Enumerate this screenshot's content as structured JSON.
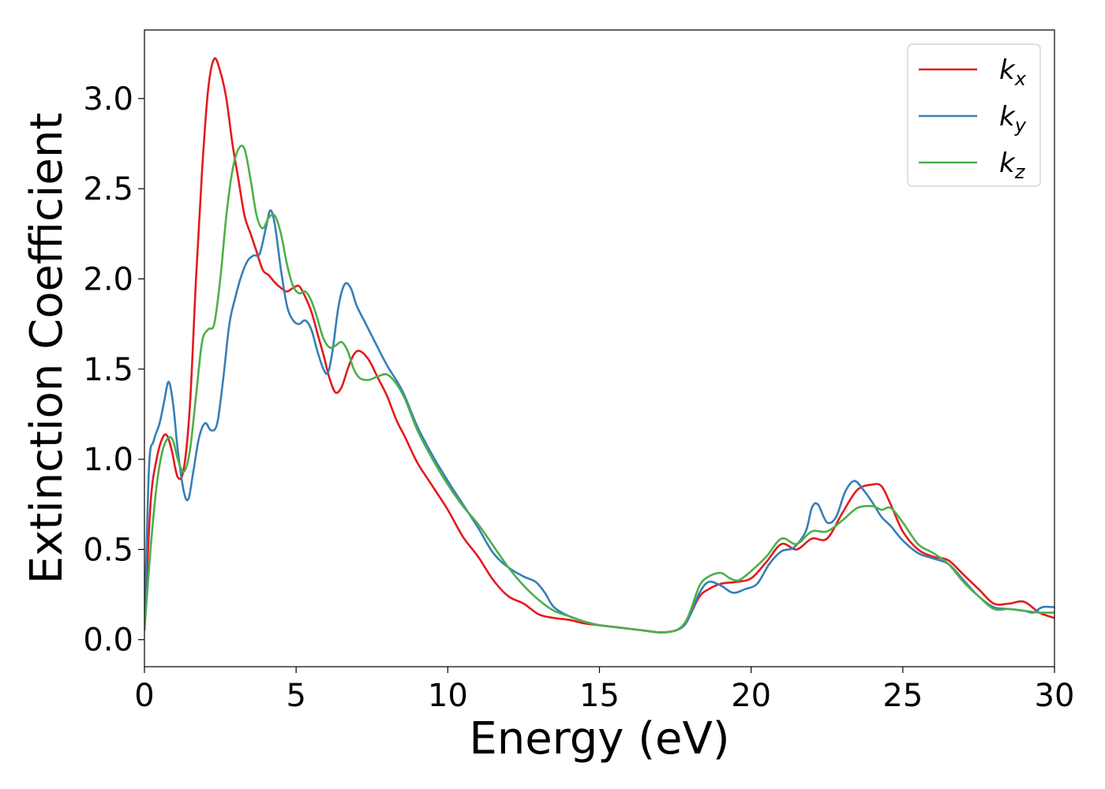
{
  "chart_data": {
    "type": "line",
    "title": "",
    "xlabel": "Energy (eV)",
    "ylabel": "Extinction Coefficient",
    "xlim": [
      0,
      30
    ],
    "ylim": [
      -0.15,
      3.38
    ],
    "xticks": [
      0,
      5,
      10,
      15,
      20,
      25,
      30
    ],
    "xtick_labels": [
      "0",
      "5",
      "10",
      "15",
      "20",
      "25",
      "30"
    ],
    "yticks": [
      0.0,
      0.5,
      1.0,
      1.5,
      2.0,
      2.5,
      3.0
    ],
    "ytick_labels": [
      "0.0",
      "0.5",
      "1.0",
      "1.5",
      "2.0",
      "2.5",
      "3.0"
    ],
    "grid": false,
    "legend_position": "top-right",
    "series": [
      {
        "name": "k",
        "name_sub": "x",
        "color": "#e41a1c",
        "x": [
          0,
          0.2,
          0.4,
          0.6,
          0.75,
          0.9,
          1.1,
          1.3,
          1.5,
          1.7,
          1.9,
          2.1,
          2.3,
          2.5,
          2.7,
          2.9,
          3.1,
          3.3,
          3.5,
          3.7,
          3.9,
          4.1,
          4.3,
          4.5,
          4.7,
          4.9,
          5.1,
          5.3,
          5.5,
          5.7,
          5.9,
          6.1,
          6.3,
          6.5,
          6.7,
          6.9,
          7.1,
          7.4,
          7.7,
          8.0,
          8.3,
          8.6,
          9.0,
          9.5,
          10.0,
          10.5,
          11.0,
          11.5,
          12.0,
          12.5,
          13.0,
          13.5,
          14.0,
          14.5,
          15.0,
          15.5,
          16.0,
          16.5,
          17.0,
          17.5,
          17.8,
          18.0,
          18.3,
          18.6,
          19.0,
          19.5,
          20.0,
          20.5,
          21.0,
          21.5,
          22.0,
          22.5,
          23.0,
          23.5,
          24.0,
          24.3,
          24.6,
          25.0,
          25.5,
          26.0,
          26.5,
          27.0,
          27.5,
          28.0,
          28.5,
          29.0,
          29.5,
          30.0
        ],
        "y": [
          0.05,
          0.75,
          1.0,
          1.12,
          1.13,
          1.05,
          0.9,
          0.95,
          1.3,
          2.0,
          2.6,
          3.05,
          3.22,
          3.15,
          3.0,
          2.75,
          2.55,
          2.35,
          2.25,
          2.15,
          2.05,
          2.02,
          1.98,
          1.95,
          1.93,
          1.95,
          1.96,
          1.9,
          1.82,
          1.7,
          1.58,
          1.45,
          1.37,
          1.4,
          1.5,
          1.58,
          1.6,
          1.55,
          1.45,
          1.35,
          1.22,
          1.12,
          0.98,
          0.85,
          0.72,
          0.57,
          0.46,
          0.33,
          0.24,
          0.2,
          0.14,
          0.12,
          0.11,
          0.09,
          0.08,
          0.07,
          0.06,
          0.05,
          0.04,
          0.05,
          0.08,
          0.14,
          0.24,
          0.28,
          0.31,
          0.32,
          0.34,
          0.43,
          0.53,
          0.5,
          0.56,
          0.56,
          0.7,
          0.83,
          0.86,
          0.85,
          0.75,
          0.6,
          0.5,
          0.46,
          0.44,
          0.36,
          0.28,
          0.2,
          0.2,
          0.21,
          0.15,
          0.12
        ]
      },
      {
        "name": "k",
        "name_sub": "y",
        "color": "#377eb8",
        "x": [
          0,
          0.15,
          0.3,
          0.5,
          0.65,
          0.8,
          0.95,
          1.1,
          1.3,
          1.45,
          1.6,
          1.8,
          2.0,
          2.2,
          2.4,
          2.6,
          2.8,
          3.0,
          3.2,
          3.4,
          3.6,
          3.8,
          4.0,
          4.15,
          4.3,
          4.5,
          4.7,
          4.9,
          5.1,
          5.3,
          5.5,
          5.7,
          5.9,
          6.05,
          6.2,
          6.4,
          6.6,
          6.8,
          7.0,
          7.3,
          7.6,
          8.0,
          8.5,
          9.0,
          9.5,
          10.0,
          10.5,
          11.0,
          11.5,
          12.0,
          12.5,
          12.9,
          13.2,
          13.5,
          14.0,
          14.5,
          15.0,
          15.5,
          16.0,
          16.5,
          17.0,
          17.5,
          17.8,
          18.0,
          18.3,
          18.6,
          19.0,
          19.4,
          19.8,
          20.2,
          20.6,
          21.0,
          21.4,
          21.8,
          22.0,
          22.2,
          22.5,
          22.8,
          23.1,
          23.4,
          23.7,
          24.0,
          24.3,
          24.6,
          25.0,
          25.5,
          26.0,
          26.5,
          27.0,
          27.5,
          28.0,
          28.5,
          29.0,
          29.3,
          29.6,
          30.0
        ],
        "y": [
          0.05,
          0.95,
          1.1,
          1.2,
          1.32,
          1.43,
          1.3,
          1.05,
          0.82,
          0.78,
          0.92,
          1.12,
          1.2,
          1.16,
          1.2,
          1.45,
          1.75,
          1.9,
          2.02,
          2.1,
          2.13,
          2.14,
          2.28,
          2.38,
          2.3,
          2.05,
          1.85,
          1.77,
          1.75,
          1.77,
          1.72,
          1.6,
          1.5,
          1.48,
          1.6,
          1.85,
          1.97,
          1.95,
          1.85,
          1.75,
          1.65,
          1.52,
          1.38,
          1.18,
          1.02,
          0.88,
          0.75,
          0.62,
          0.48,
          0.4,
          0.35,
          0.32,
          0.26,
          0.18,
          0.13,
          0.1,
          0.08,
          0.07,
          0.06,
          0.05,
          0.04,
          0.05,
          0.08,
          0.14,
          0.26,
          0.32,
          0.3,
          0.26,
          0.28,
          0.31,
          0.42,
          0.49,
          0.51,
          0.6,
          0.73,
          0.75,
          0.65,
          0.68,
          0.82,
          0.88,
          0.83,
          0.76,
          0.68,
          0.63,
          0.55,
          0.48,
          0.45,
          0.42,
          0.33,
          0.24,
          0.18,
          0.17,
          0.16,
          0.15,
          0.18,
          0.18
        ]
      },
      {
        "name": "k",
        "name_sub": "z",
        "color": "#4daf4a",
        "x": [
          0,
          0.2,
          0.4,
          0.6,
          0.8,
          0.95,
          1.1,
          1.3,
          1.5,
          1.7,
          1.9,
          2.1,
          2.3,
          2.5,
          2.7,
          2.9,
          3.1,
          3.3,
          3.5,
          3.7,
          3.9,
          4.1,
          4.3,
          4.5,
          4.7,
          4.9,
          5.1,
          5.3,
          5.5,
          5.7,
          5.9,
          6.1,
          6.3,
          6.5,
          6.7,
          6.9,
          7.1,
          7.4,
          7.7,
          8.0,
          8.3,
          8.6,
          9.0,
          9.5,
          10.0,
          10.5,
          11.0,
          11.5,
          12.0,
          12.5,
          13.0,
          13.5,
          14.0,
          14.5,
          15.0,
          15.5,
          16.0,
          16.5,
          17.0,
          17.5,
          17.8,
          18.0,
          18.3,
          18.6,
          19.0,
          19.3,
          19.6,
          20.0,
          20.5,
          21.0,
          21.5,
          22.0,
          22.5,
          23.0,
          23.5,
          24.0,
          24.3,
          24.6,
          25.0,
          25.5,
          26.0,
          26.5,
          27.0,
          27.5,
          28.0,
          28.5,
          29.0,
          29.5,
          30.0
        ],
        "y": [
          0.05,
          0.5,
          0.85,
          1.05,
          1.12,
          1.1,
          1.0,
          0.93,
          1.05,
          1.35,
          1.65,
          1.72,
          1.75,
          2.0,
          2.35,
          2.6,
          2.72,
          2.72,
          2.55,
          2.35,
          2.28,
          2.34,
          2.35,
          2.25,
          2.08,
          1.96,
          1.92,
          1.93,
          1.88,
          1.78,
          1.67,
          1.62,
          1.63,
          1.65,
          1.6,
          1.5,
          1.45,
          1.44,
          1.46,
          1.47,
          1.42,
          1.33,
          1.16,
          1.0,
          0.86,
          0.74,
          0.64,
          0.52,
          0.4,
          0.3,
          0.22,
          0.16,
          0.13,
          0.1,
          0.08,
          0.07,
          0.06,
          0.05,
          0.04,
          0.05,
          0.09,
          0.16,
          0.3,
          0.35,
          0.37,
          0.34,
          0.33,
          0.38,
          0.46,
          0.56,
          0.53,
          0.6,
          0.6,
          0.66,
          0.73,
          0.74,
          0.72,
          0.73,
          0.65,
          0.53,
          0.48,
          0.42,
          0.32,
          0.24,
          0.17,
          0.17,
          0.16,
          0.15,
          0.15
        ]
      }
    ]
  }
}
